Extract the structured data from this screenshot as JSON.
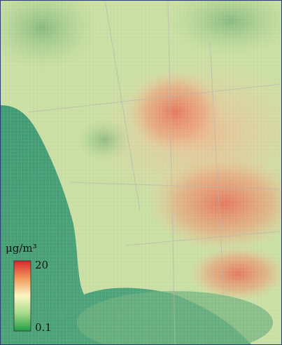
{
  "legend": {
    "unit": "μg/m³",
    "max": 20,
    "min": 0.1
  }
}
